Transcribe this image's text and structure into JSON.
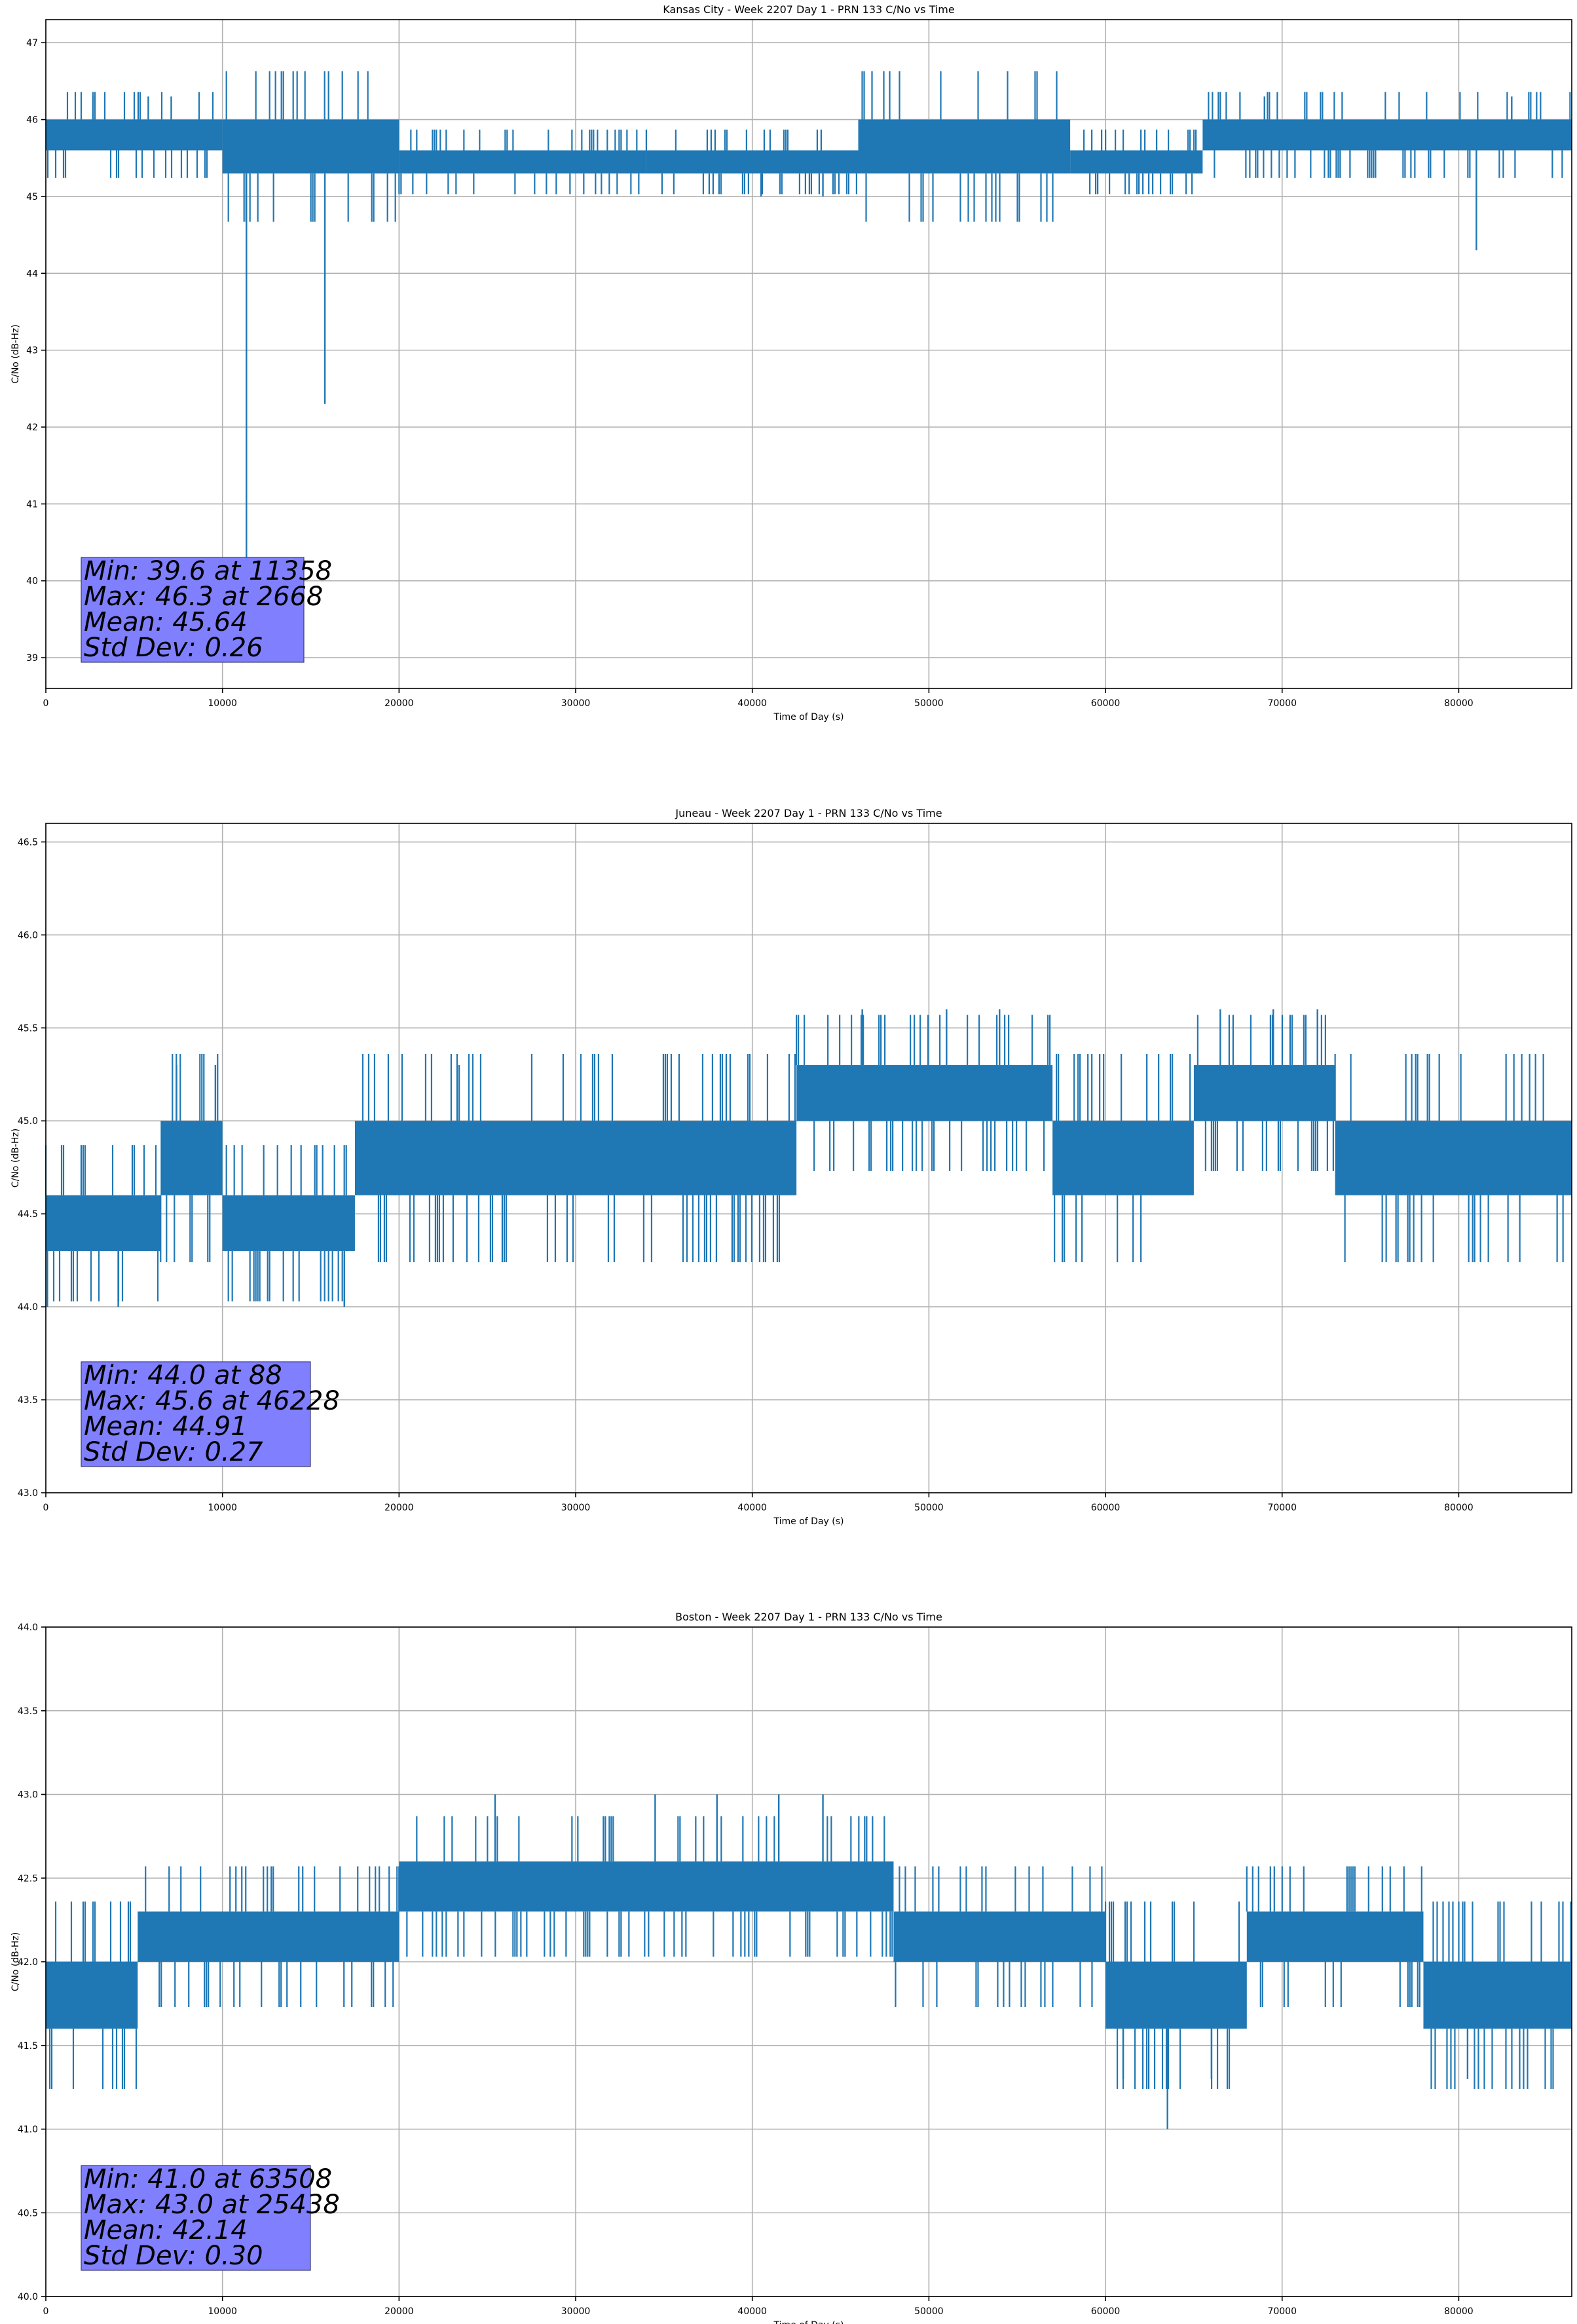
{
  "chart_data": [
    {
      "type": "line",
      "title": "Kansas City - Week 2207 Day 1 - PRN 133 C/No vs Time",
      "xlabel": "Time of Day (s)",
      "ylabel": "C/No (dB-Hz)",
      "xlim": [
        0,
        86400
      ],
      "ylim": [
        38.6,
        47.3
      ],
      "xticks": [
        0,
        10000,
        20000,
        30000,
        40000,
        50000,
        60000,
        70000,
        80000
      ],
      "yticks": [
        39,
        40,
        41,
        42,
        43,
        44,
        45,
        46,
        47
      ],
      "ytick_format": 0,
      "grid": true,
      "color": "#1f77b4",
      "bands": [
        {
          "x": [
            0,
            10000
          ],
          "values": [
            45.6,
            46.0
          ]
        },
        {
          "x": [
            10000,
            20000
          ],
          "values": [
            45.3,
            46.0
          ]
        },
        {
          "x": [
            20000,
            34000
          ],
          "values": [
            45.3,
            45.6
          ]
        },
        {
          "x": [
            34000,
            46000
          ],
          "values": [
            45.3,
            45.6
          ]
        },
        {
          "x": [
            46000,
            58000
          ],
          "values": [
            45.3,
            46.0
          ]
        },
        {
          "x": [
            58000,
            65500
          ],
          "values": [
            45.3,
            45.6
          ]
        },
        {
          "x": [
            65500,
            86400
          ],
          "values": [
            45.6,
            46.0
          ]
        }
      ],
      "spikes": [
        {
          "x": 2668,
          "y": 46.3
        },
        {
          "x": 5800,
          "y": 46.3
        },
        {
          "x": 7100,
          "y": 46.3
        },
        {
          "x": 11358,
          "y": 39.6
        },
        {
          "x": 15800,
          "y": 42.3
        },
        {
          "x": 40500,
          "y": 45.0
        },
        {
          "x": 44000,
          "y": 45.0
        },
        {
          "x": 69000,
          "y": 46.3
        },
        {
          "x": 81000,
          "y": 44.3
        },
        {
          "x": 83000,
          "y": 46.3
        }
      ],
      "stats": {
        "min": "Min: 39.6 at 11358",
        "max": "Max: 46.3 at 2668",
        "mean": "Mean: 45.64",
        "std": "Std Dev: 0.26"
      }
    },
    {
      "type": "line",
      "title": "Juneau - Week 2207 Day 1 - PRN 133 C/No vs Time",
      "xlabel": "Time of Day (s)",
      "ylabel": "C/No (dB-Hz)",
      "xlim": [
        0,
        86400
      ],
      "ylim": [
        43.0,
        46.6
      ],
      "xticks": [
        0,
        10000,
        20000,
        30000,
        40000,
        50000,
        60000,
        70000,
        80000
      ],
      "yticks": [
        43.0,
        43.5,
        44.0,
        44.5,
        45.0,
        45.5,
        46.0,
        46.5
      ],
      "ytick_format": 1,
      "grid": true,
      "color": "#1f77b4",
      "bands": [
        {
          "x": [
            0,
            6500
          ],
          "values": [
            44.3,
            44.6
          ]
        },
        {
          "x": [
            6500,
            10000
          ],
          "values": [
            44.6,
            45.0
          ]
        },
        {
          "x": [
            10000,
            17500
          ],
          "values": [
            44.3,
            44.6
          ]
        },
        {
          "x": [
            17500,
            42500
          ],
          "values": [
            44.6,
            45.0
          ]
        },
        {
          "x": [
            42500,
            57000
          ],
          "values": [
            45.0,
            45.3
          ]
        },
        {
          "x": [
            57000,
            65000
          ],
          "values": [
            44.6,
            45.0
          ]
        },
        {
          "x": [
            65000,
            73000
          ],
          "values": [
            45.0,
            45.3
          ]
        },
        {
          "x": [
            73000,
            86400
          ],
          "values": [
            44.6,
            45.0
          ]
        }
      ],
      "spikes": [
        {
          "x": 88,
          "y": 44.0
        },
        {
          "x": 4100,
          "y": 44.0
        },
        {
          "x": 7400,
          "y": 45.3
        },
        {
          "x": 9600,
          "y": 45.3
        },
        {
          "x": 16900,
          "y": 44.0
        },
        {
          "x": 23400,
          "y": 45.3
        },
        {
          "x": 46228,
          "y": 45.6
        },
        {
          "x": 51000,
          "y": 45.6
        },
        {
          "x": 54000,
          "y": 45.6
        },
        {
          "x": 66500,
          "y": 45.6
        },
        {
          "x": 69500,
          "y": 45.6
        },
        {
          "x": 72000,
          "y": 45.6
        }
      ],
      "stats": {
        "min": "Min: 44.0 at 88",
        "max": "Max: 45.6 at 46228",
        "mean": "Mean: 44.91",
        "std": "Std Dev: 0.27"
      }
    },
    {
      "type": "line",
      "title": "Boston - Week 2207 Day 1 - PRN 133 C/No vs Time",
      "xlabel": "Time of Day (s)",
      "ylabel": "C/No (dB-Hz)",
      "xlim": [
        0,
        86400
      ],
      "ylim": [
        40.0,
        44.0
      ],
      "xticks": [
        0,
        10000,
        20000,
        30000,
        40000,
        50000,
        60000,
        70000,
        80000
      ],
      "yticks": [
        40.0,
        40.5,
        41.0,
        41.5,
        42.0,
        42.5,
        43.0,
        43.5,
        44.0
      ],
      "ytick_format": 1,
      "grid": true,
      "color": "#1f77b4",
      "bands": [
        {
          "x": [
            0,
            5200
          ],
          "values": [
            41.6,
            42.0
          ]
        },
        {
          "x": [
            5200,
            20000
          ],
          "values": [
            42.0,
            42.3
          ]
        },
        {
          "x": [
            20000,
            48000
          ],
          "values": [
            42.3,
            42.6
          ]
        },
        {
          "x": [
            48000,
            60000
          ],
          "values": [
            42.0,
            42.3
          ]
        },
        {
          "x": [
            60000,
            68000
          ],
          "values": [
            41.6,
            42.0
          ]
        },
        {
          "x": [
            68000,
            78000
          ],
          "values": [
            42.0,
            42.3
          ]
        },
        {
          "x": [
            78000,
            86400
          ],
          "values": [
            41.6,
            42.0
          ]
        }
      ],
      "spikes": [
        {
          "x": 25438,
          "y": 43.0
        },
        {
          "x": 34500,
          "y": 43.0
        },
        {
          "x": 38000,
          "y": 43.0
        },
        {
          "x": 41500,
          "y": 43.0
        },
        {
          "x": 44000,
          "y": 43.0
        },
        {
          "x": 61000,
          "y": 41.3
        },
        {
          "x": 63508,
          "y": 41.0
        },
        {
          "x": 66000,
          "y": 41.3
        },
        {
          "x": 80500,
          "y": 41.3
        }
      ],
      "stats": {
        "min": "Min: 41.0 at 63508",
        "max": "Max: 43.0 at 25438",
        "mean": "Mean: 42.14",
        "std": "Std Dev: 0.30"
      }
    }
  ]
}
